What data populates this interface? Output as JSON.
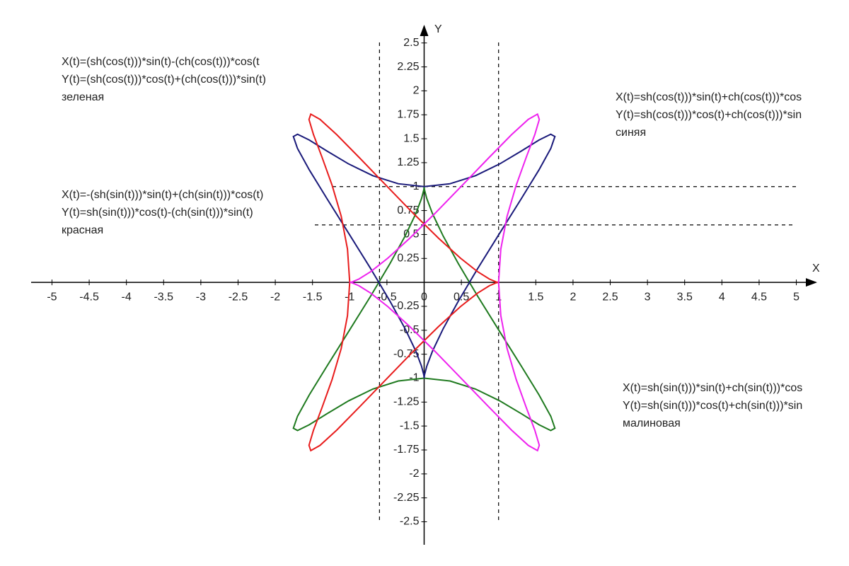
{
  "chart_data": {
    "type": "line",
    "xlabel": "X",
    "ylabel": "Y",
    "xlim": [
      -5.28,
      5.28
    ],
    "ylim": [
      -2.74,
      2.69
    ],
    "xticks": [
      -5,
      -4.5,
      -4,
      -3.5,
      -3,
      -2.5,
      -2,
      -1.5,
      -1,
      -0.5,
      0,
      0.5,
      1,
      1.5,
      2,
      2.5,
      3,
      3.5,
      4,
      4.5,
      5
    ],
    "yticks": [
      -2.5,
      -2.25,
      -2,
      -1.75,
      -1.5,
      -1.25,
      -1,
      -0.75,
      -0.5,
      -0.25,
      0.25,
      0.5,
      0.75,
      1,
      1.25,
      1.5,
      1.75,
      2,
      2.25,
      2.5
    ],
    "grid": false,
    "ref_x": [
      -0.6,
      1
    ],
    "ref_y": [
      1,
      0.6
    ],
    "series": [
      {
        "name": "зеленая",
        "color": "#1f7a1f",
        "formula": [
          "X(t)=(sh(cos(t)))*sin(t)-(ch(cos(t)))*cos(t",
          "Y(t)=(sh(cos(t)))*cos(t)+(ch(cos(t)))*sin(t)"
        ],
        "x": [
          0,
          0.004,
          0.035,
          0.113,
          0.253,
          0.46,
          0.722,
          1.015,
          1.302,
          1.543,
          1.702,
          1.757,
          1.701,
          1.544,
          1.307,
          1.015,
          0.69,
          0.348,
          0,
          -0.348,
          -0.69,
          -1.015,
          -1.307,
          -1.544,
          -1.701,
          -1.757,
          -1.702,
          -1.543,
          -1.302,
          -1.015,
          -0.722,
          -0.46,
          -0.253,
          -0.113,
          -0.035,
          -0.004,
          0
        ],
        "y": [
          1,
          0.969,
          0.876,
          0.716,
          0.488,
          0.195,
          -0.148,
          -0.514,
          -0.87,
          -1.175,
          -1.399,
          -1.523,
          -1.547,
          -1.487,
          -1.372,
          -1.237,
          -1.114,
          -1.03,
          -1,
          -1.03,
          -1.114,
          -1.237,
          -1.372,
          -1.487,
          -1.547,
          -1.523,
          -1.399,
          -1.175,
          -0.87,
          -0.514,
          -0.148,
          0.195,
          0.488,
          0.716,
          0.876,
          0.969,
          1
        ]
      },
      {
        "name": "синяя",
        "color": "#1a1a7a",
        "formula": [
          "X(t)=sh(cos(t)))*sin(t)+ch(cos(t)))*cos",
          "Y(t)=sh(cos(t)))*cos(t)+ch(cos(t)))*sin"
        ],
        "x": [
          0,
          0.004,
          0.035,
          0.113,
          0.253,
          0.46,
          0.722,
          1.015,
          1.302,
          1.543,
          1.702,
          1.757,
          1.701,
          1.544,
          1.307,
          1.015,
          0.69,
          0.348,
          0,
          -0.348,
          -0.69,
          -1.015,
          -1.307,
          -1.544,
          -1.701,
          -1.757,
          -1.702,
          -1.543,
          -1.302,
          -1.015,
          -0.722,
          -0.46,
          -0.253,
          -0.113,
          -0.035,
          -0.004,
          0
        ],
        "y": [
          -1,
          -0.969,
          -0.876,
          -0.716,
          -0.488,
          -0.195,
          0.148,
          0.514,
          0.87,
          1.175,
          1.399,
          1.523,
          1.547,
          1.487,
          1.372,
          1.237,
          1.114,
          1.03,
          1,
          1.03,
          1.114,
          1.237,
          1.372,
          1.487,
          1.547,
          1.523,
          1.399,
          1.175,
          0.87,
          0.514,
          0.148,
          -0.195,
          -0.488,
          -0.716,
          -0.876,
          -0.969,
          -1
        ]
      },
      {
        "name": "красная",
        "color": "#e81c1c",
        "formula": [
          "X(t)=-(sh(sin(t)))*sin(t)+(ch(sin(t)))*cos(t)",
          "Y(t)=sh(sin(t)))*cos(t)-(ch(sin(t)))*sin(t)"
        ],
        "x": [
          1,
          0.969,
          0.876,
          0.716,
          0.488,
          0.195,
          -0.148,
          -0.514,
          -0.87,
          -1.175,
          -1.399,
          -1.523,
          -1.547,
          -1.487,
          -1.372,
          -1.237,
          -1.114,
          -1.03,
          -1,
          -1.03,
          -1.114,
          -1.237,
          -1.372,
          -1.487,
          -1.547,
          -1.523,
          -1.399,
          -1.175,
          -0.87,
          -0.514,
          -0.148,
          0.195,
          0.488,
          0.716,
          0.876,
          0.969,
          1
        ],
        "y": [
          0,
          0.004,
          0.035,
          0.113,
          0.253,
          0.46,
          0.722,
          1.015,
          1.302,
          1.543,
          1.702,
          1.757,
          1.701,
          1.544,
          1.307,
          1.015,
          0.69,
          0.348,
          0,
          -0.348,
          -0.69,
          -1.015,
          -1.307,
          -1.544,
          -1.701,
          -1.757,
          -1.702,
          -1.543,
          -1.302,
          -1.015,
          -0.722,
          -0.46,
          -0.253,
          -0.113,
          -0.035,
          -0.004,
          0
        ]
      },
      {
        "name": "малиновая",
        "color": "#ee22ee",
        "formula": [
          "X(t)=sh(sin(t)))*sin(t)+ch(sin(t)))*cos",
          "Y(t)=sh(sin(t)))*cos(t)+ch(sin(t)))*sin"
        ],
        "x": [
          -1,
          -0.969,
          -0.876,
          -0.716,
          -0.488,
          -0.195,
          0.148,
          0.514,
          0.87,
          1.175,
          1.399,
          1.523,
          1.547,
          1.487,
          1.372,
          1.237,
          1.114,
          1.03,
          1,
          1.03,
          1.114,
          1.237,
          1.372,
          1.487,
          1.547,
          1.523,
          1.399,
          1.175,
          0.87,
          0.514,
          0.148,
          -0.195,
          -0.488,
          -0.716,
          -0.876,
          -0.969,
          -1
        ],
        "y": [
          0,
          0.004,
          0.035,
          0.113,
          0.253,
          0.46,
          0.722,
          1.015,
          1.302,
          1.543,
          1.702,
          1.757,
          1.701,
          1.544,
          1.307,
          1.015,
          0.69,
          0.348,
          0,
          -0.348,
          -0.69,
          -1.015,
          -1.307,
          -1.544,
          -1.701,
          -1.757,
          -1.702,
          -1.543,
          -1.302,
          -1.015,
          -0.722,
          -0.46,
          -0.253,
          -0.113,
          -0.035,
          -0.004,
          0
        ]
      }
    ]
  }
}
